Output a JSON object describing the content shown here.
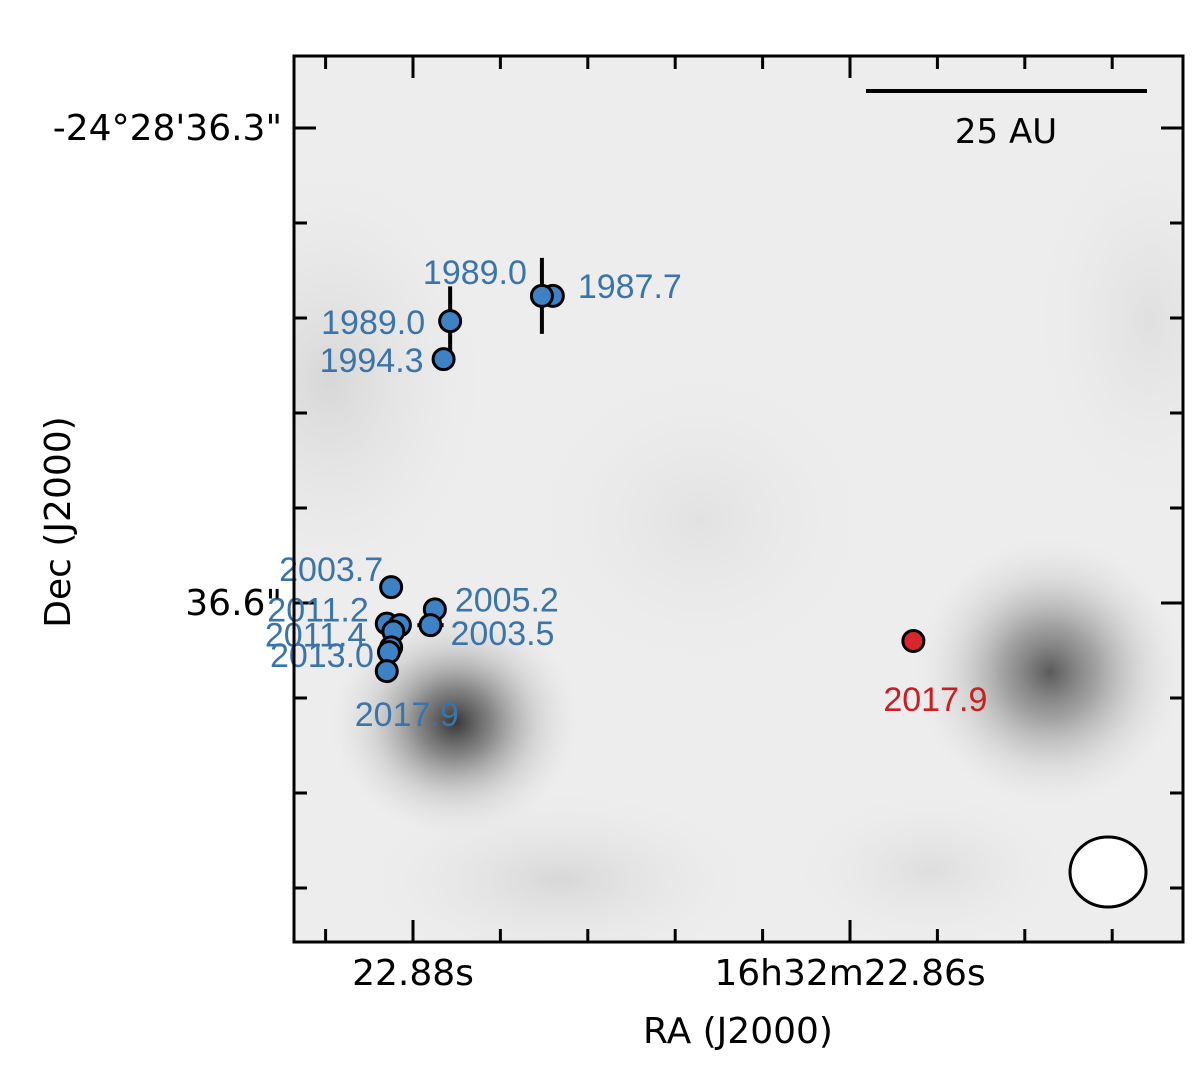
{
  "chart_data": {
    "type": "scatter",
    "xlabel": "RA (J2000)",
    "ylabel": "Dec (J2000)",
    "x_tick_labels": [
      "22.88s",
      "16h32m22.86s"
    ],
    "y_tick_labels": [
      "-24°28'36.3\"",
      "36.6\""
    ],
    "scale_bar_label": "25 AU",
    "grid": false,
    "legend": "none",
    "colors": {
      "blue": "#3d82c4",
      "blue_text": "#3b74a8",
      "red": "#d9262a",
      "red_text": "#c62025"
    },
    "series": [
      {
        "color": "blue",
        "points": [
          {
            "label": "1987.7",
            "ra_s": 22.8736,
            "dec_s": 36.406,
            "err_ra": 0,
            "err_dec": 0
          },
          {
            "label": "1989.0",
            "ra_s": 22.8741,
            "dec_s": 36.406,
            "err_ra": 0.0005,
            "err_dec": 0.024
          },
          {
            "label": "1989.0",
            "ra_s": 22.8783,
            "dec_s": 36.422,
            "err_ra": 0,
            "err_dec": 0.022
          },
          {
            "label": "1994.3",
            "ra_s": 22.8786,
            "dec_s": 36.446,
            "err_ra": 0,
            "err_dec": 0
          },
          {
            "label": "2003.7",
            "ra_s": 22.881,
            "dec_s": 36.59,
            "err_ra": 0,
            "err_dec": 0
          },
          {
            "label": "2005.2",
            "ra_s": 22.879,
            "dec_s": 36.604,
            "err_ra": 0,
            "err_dec": 0
          },
          {
            "label": "2003.5",
            "ra_s": 22.8792,
            "dec_s": 36.614,
            "err_ra": 0.0006,
            "err_dec": 0.007
          },
          {
            "label": "2011.2",
            "ra_s": 22.8812,
            "dec_s": 36.613,
            "err_ra": 0,
            "err_dec": 0.007
          },
          {
            "label": "",
            "ra_s": 22.8806,
            "dec_s": 36.614,
            "err_ra": 0,
            "err_dec": 0
          },
          {
            "label": "2011.4",
            "ra_s": 22.8809,
            "dec_s": 36.618,
            "err_ra": 0,
            "err_dec": 0
          },
          {
            "label": "",
            "ra_s": 22.881,
            "dec_s": 36.628,
            "err_ra": 0,
            "err_dec": 0
          },
          {
            "label": "2013.0",
            "ra_s": 22.8811,
            "dec_s": 36.631,
            "err_ra": 0,
            "err_dec": 0
          },
          {
            "label": "2017.9",
            "ra_s": 22.8812,
            "dec_s": 36.643,
            "err_ra": 0,
            "err_dec": 0
          }
        ]
      },
      {
        "color": "red",
        "points": [
          {
            "label": "2017.9",
            "ra_s": 22.8571,
            "dec_s": 36.624,
            "err_ra": 0,
            "err_dec": 0
          }
        ]
      }
    ]
  }
}
